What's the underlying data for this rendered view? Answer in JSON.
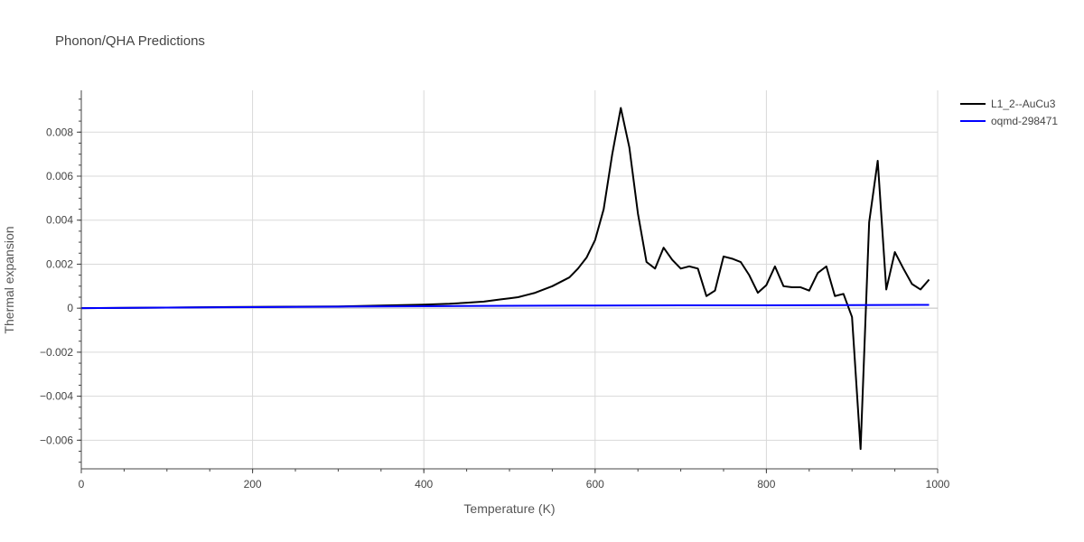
{
  "chart_data": {
    "type": "line",
    "title": "Phonon/QHA Predictions",
    "xlabel": "Temperature (K)",
    "ylabel": "Thermal expansion",
    "xlim": [
      0,
      1000
    ],
    "ylim": [
      -0.0073,
      0.0099
    ],
    "x_ticks": [
      0,
      200,
      400,
      600,
      800,
      1000
    ],
    "x_tick_labels": [
      "0",
      "200",
      "400",
      "600",
      "800",
      "1000"
    ],
    "y_ticks": [
      -0.006,
      -0.004,
      -0.002,
      0,
      0.002,
      0.004,
      0.006,
      0.008
    ],
    "y_tick_labels": [
      "−0.006",
      "−0.004",
      "−0.002",
      "0",
      "0.002",
      "0.004",
      "0.006",
      "0.008"
    ],
    "grid": true,
    "legend_position": "top-right",
    "series": [
      {
        "name": "L1_2--AuCu3",
        "color": "#000000",
        "x": [
          0,
          100,
          200,
          300,
          350,
          400,
          430,
          450,
          470,
          490,
          500,
          510,
          520,
          530,
          540,
          550,
          560,
          570,
          580,
          590,
          600,
          610,
          620,
          630,
          640,
          650,
          660,
          670,
          680,
          690,
          700,
          710,
          720,
          730,
          740,
          750,
          760,
          770,
          780,
          790,
          800,
          810,
          820,
          830,
          840,
          850,
          860,
          870,
          880,
          890,
          900,
          910,
          920,
          930,
          940,
          950,
          960,
          970,
          980,
          990
        ],
        "y": [
          0,
          3e-05,
          6e-05,
          8e-05,
          0.00012,
          0.00016,
          0.0002,
          0.00025,
          0.0003,
          0.0004,
          0.00045,
          0.0005,
          0.0006,
          0.0007,
          0.00085,
          0.001,
          0.0012,
          0.0014,
          0.0018,
          0.0023,
          0.0031,
          0.0045,
          0.007,
          0.0091,
          0.0073,
          0.0043,
          0.0021,
          0.0018,
          0.00275,
          0.0022,
          0.0018,
          0.0019,
          0.0018,
          0.00055,
          0.0008,
          0.00235,
          0.00225,
          0.0021,
          0.0015,
          0.0007,
          0.00105,
          0.0019,
          0.001,
          0.00095,
          0.00095,
          0.0008,
          0.0016,
          0.0019,
          0.00055,
          0.00065,
          -0.0004,
          -0.0064,
          0.0039,
          0.0067,
          0.00085,
          0.00255,
          0.0018,
          0.0011,
          0.00085,
          0.0013
        ]
      },
      {
        "name": "oqmd-298471",
        "color": "#0000ff",
        "x": [
          0,
          100,
          200,
          300,
          400,
          500,
          600,
          700,
          800,
          900,
          990
        ],
        "y": [
          0,
          3e-05,
          5e-05,
          7e-05,
          9e-05,
          0.00011,
          0.00012,
          0.00013,
          0.00013,
          0.00014,
          0.00015
        ]
      }
    ]
  }
}
